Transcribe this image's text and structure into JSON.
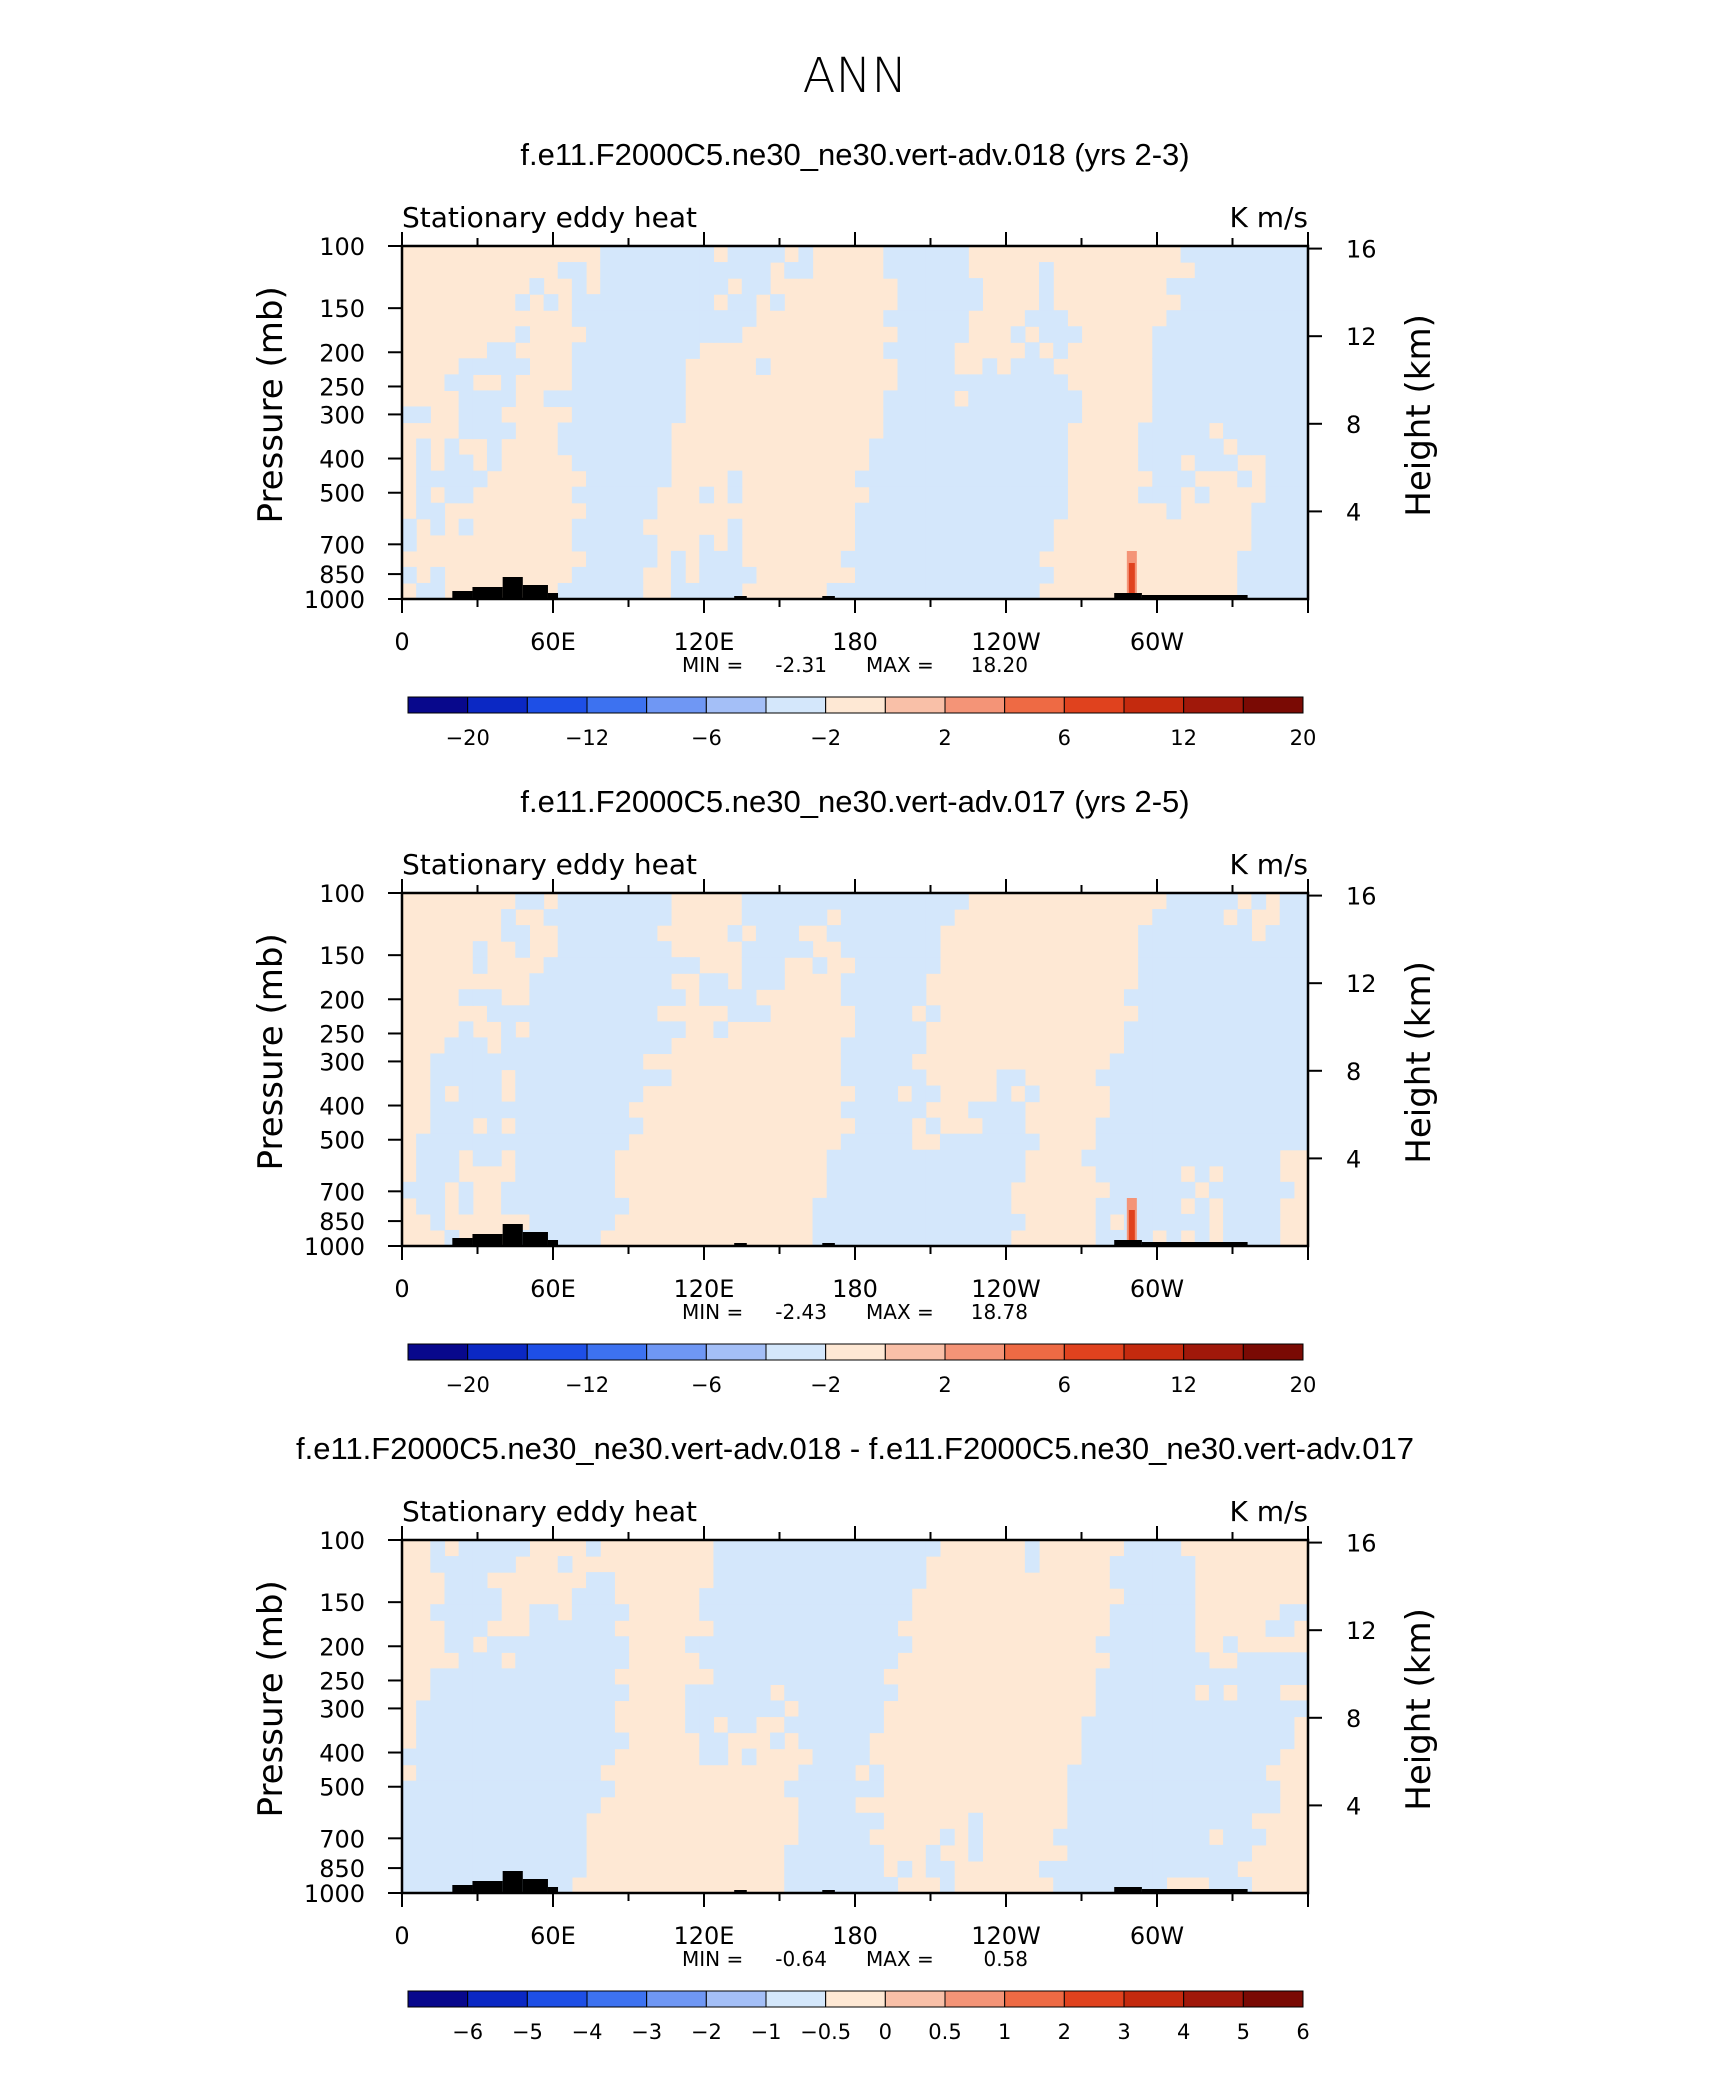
{
  "figure": {
    "title": "ANN",
    "colors": {
      "positive_fill": "#fee8d4",
      "negative_fill": "#d4e7fb",
      "land": "#000000",
      "axis": "#000000"
    }
  },
  "chart_data": [
    {
      "type": "heatmap",
      "title": "f.e11.F2000C5.ne30_ne30.vert-adv.018 (yrs 2-3)",
      "left_string": "Stationary eddy heat",
      "right_string": "K m/s",
      "ylabel": "Pressure (mb)",
      "ylabel_right": "Height (km)",
      "x_ticks": [
        "0",
        "60E",
        "120E",
        "180",
        "120W",
        "60W"
      ],
      "y_ticks": [
        "100",
        "150",
        "200",
        "250",
        "300",
        "400",
        "500",
        "700",
        "850",
        "1000"
      ],
      "y2_ticks": [
        "16",
        "12",
        "8",
        "4"
      ],
      "min_label": "MIN =",
      "min_value": "-2.31",
      "max_label": "MAX =",
      "max_value": "18.20",
      "colorbar_labels": [
        "−20",
        "−12",
        "−6",
        "−2",
        "2",
        "6",
        "12",
        "20"
      ]
    },
    {
      "type": "heatmap",
      "title": "f.e11.F2000C5.ne30_ne30.vert-adv.017 (yrs 2-5)",
      "left_string": "Stationary eddy heat",
      "right_string": "K m/s",
      "ylabel": "Pressure (mb)",
      "ylabel_right": "Height (km)",
      "x_ticks": [
        "0",
        "60E",
        "120E",
        "180",
        "120W",
        "60W"
      ],
      "y_ticks": [
        "100",
        "150",
        "200",
        "250",
        "300",
        "400",
        "500",
        "700",
        "850",
        "1000"
      ],
      "y2_ticks": [
        "16",
        "12",
        "8",
        "4"
      ],
      "min_label": "MIN =",
      "min_value": "-2.43",
      "max_label": "MAX =",
      "max_value": "18.78",
      "colorbar_labels": [
        "−20",
        "−12",
        "−6",
        "−2",
        "2",
        "6",
        "12",
        "20"
      ]
    },
    {
      "type": "heatmap",
      "title": "f.e11.F2000C5.ne30_ne30.vert-adv.018 - f.e11.F2000C5.ne30_ne30.vert-adv.017",
      "left_string": "Stationary eddy heat",
      "right_string": "K m/s",
      "ylabel": "Pressure (mb)",
      "ylabel_right": "Height (km)",
      "x_ticks": [
        "0",
        "60E",
        "120E",
        "180",
        "120W",
        "60W"
      ],
      "y_ticks": [
        "100",
        "150",
        "200",
        "250",
        "300",
        "400",
        "500",
        "700",
        "850",
        "1000"
      ],
      "y2_ticks": [
        "16",
        "12",
        "8",
        "4"
      ],
      "min_label": "MIN =",
      "min_value": "-0.64",
      "max_label": "MAX =",
      "max_value": "0.58",
      "colorbar_labels": [
        "−6",
        "−5",
        "−4",
        "−3",
        "−2",
        "−1",
        "−0.5",
        "0",
        "0.5",
        "1",
        "2",
        "3",
        "4",
        "5",
        "6"
      ]
    }
  ],
  "colorbars": {
    "main": [
      "#08088c",
      "#0b28c4",
      "#1e4fe6",
      "#3d72f0",
      "#6f97f4",
      "#a4bff7",
      "#d4e7fb",
      "#fee8d4",
      "#f9c0a8",
      "#f49477",
      "#ee6a44",
      "#e0421e",
      "#c42a0e",
      "#a0180a",
      "#7a0a04"
    ],
    "diff": [
      "#08088c",
      "#0b28c4",
      "#1e4fe6",
      "#3d72f0",
      "#6f97f4",
      "#a4bff7",
      "#d4e7fb",
      "#fee8d4",
      "#f9c0a8",
      "#f49477",
      "#ee6a44",
      "#e0421e",
      "#c42a0e",
      "#a0180a",
      "#7a0a04"
    ]
  }
}
